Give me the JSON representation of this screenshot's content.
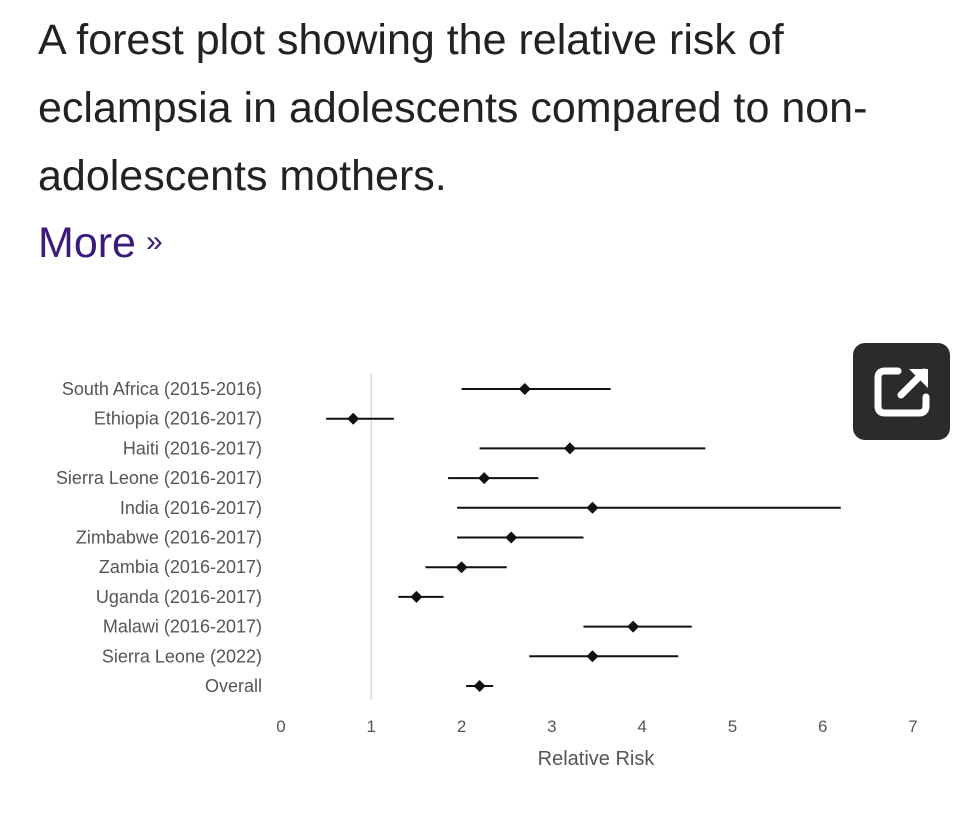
{
  "caption": {
    "text": "A forest plot showing the relative risk of eclampsia in adolescents compared to non-adolescents mothers.",
    "more_label": "More",
    "more_chevron": "»"
  },
  "expand_button": {
    "icon": "open-in-new-icon"
  },
  "chart_data": {
    "type": "forest",
    "xlabel": "Relative Risk",
    "xlim": [
      0,
      7
    ],
    "xticks": [
      0,
      1,
      2,
      3,
      4,
      5,
      6,
      7
    ],
    "reference_line": 1,
    "rows": [
      {
        "label": "South Africa (2015-2016)",
        "rr": 2.7,
        "lo": 2.0,
        "hi": 3.65
      },
      {
        "label": "Ethiopia (2016-2017)",
        "rr": 0.8,
        "lo": 0.5,
        "hi": 1.25
      },
      {
        "label": "Haiti (2016-2017)",
        "rr": 3.2,
        "lo": 2.2,
        "hi": 4.7
      },
      {
        "label": "Sierra Leone (2016-2017)",
        "rr": 2.25,
        "lo": 1.85,
        "hi": 2.85
      },
      {
        "label": "India (2016-2017)",
        "rr": 3.45,
        "lo": 1.95,
        "hi": 6.2
      },
      {
        "label": "Zimbabwe (2016-2017)",
        "rr": 2.55,
        "lo": 1.95,
        "hi": 3.35
      },
      {
        "label": "Zambia (2016-2017)",
        "rr": 2.0,
        "lo": 1.6,
        "hi": 2.5
      },
      {
        "label": "Uganda (2016-2017)",
        "rr": 1.5,
        "lo": 1.3,
        "hi": 1.8
      },
      {
        "label": "Malawi (2016-2017)",
        "rr": 3.9,
        "lo": 3.35,
        "hi": 4.55
      },
      {
        "label": "Sierra Leone (2022)",
        "rr": 3.45,
        "lo": 2.75,
        "hi": 4.4
      },
      {
        "label": "Overall",
        "rr": 2.2,
        "lo": 2.05,
        "hi": 2.35
      }
    ]
  }
}
